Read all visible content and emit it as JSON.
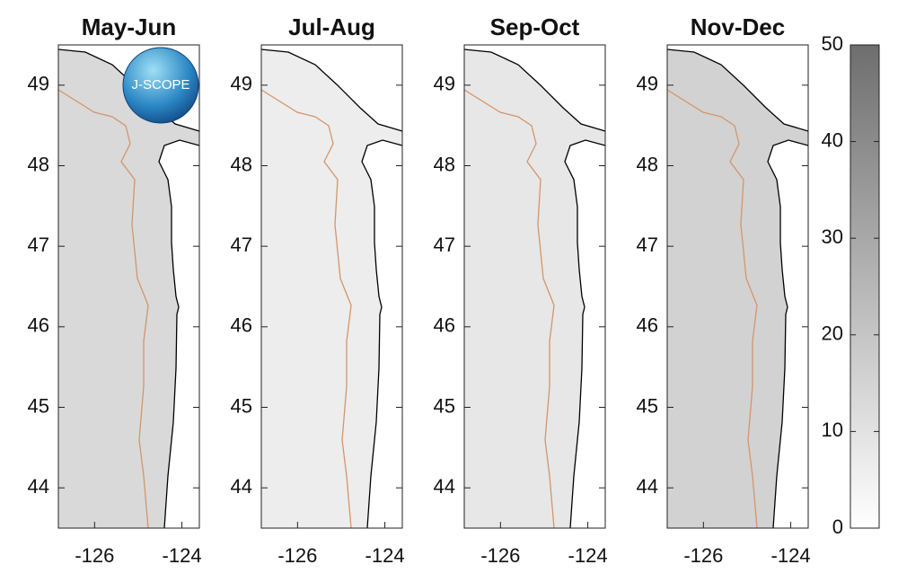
{
  "map": {
    "panels": [
      {
        "title": "May-Jun"
      },
      {
        "title": "Jul-Aug"
      },
      {
        "title": "Sep-Oct"
      },
      {
        "title": "Nov-Dec"
      }
    ],
    "lat_lim": [
      43.5,
      49.5
    ],
    "lat_ticks": [
      44,
      45,
      46,
      47,
      48,
      49
    ],
    "lon_lim": [
      -126.83,
      -123.6
    ],
    "lon_ticks": [
      -126,
      -124
    ]
  },
  "colorbar": {
    "lim": [
      0,
      50
    ],
    "ticks": [
      0,
      10,
      20,
      30,
      40,
      50
    ]
  },
  "logo": "J-SCOPE"
}
